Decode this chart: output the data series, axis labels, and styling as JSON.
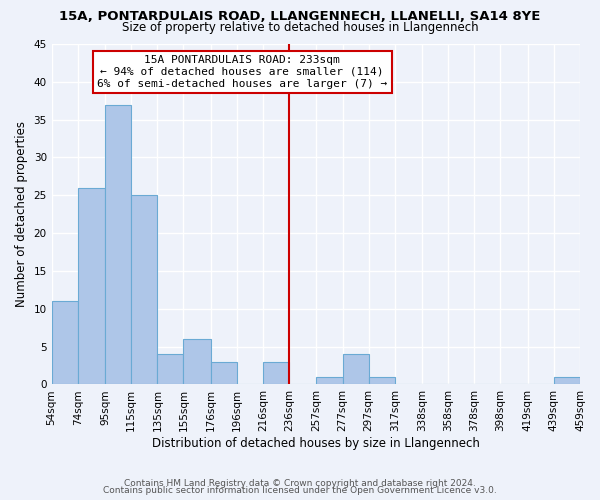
{
  "title": "15A, PONTARDULAIS ROAD, LLANGENNECH, LLANELLI, SA14 8YE",
  "subtitle": "Size of property relative to detached houses in Llangennech",
  "xlabel": "Distribution of detached houses by size in Llangennech",
  "ylabel": "Number of detached properties",
  "footer_line1": "Contains HM Land Registry data © Crown copyright and database right 2024.",
  "footer_line2": "Contains public sector information licensed under the Open Government Licence v3.0.",
  "bins": [
    54,
    74,
    95,
    115,
    135,
    155,
    176,
    196,
    216,
    236,
    257,
    277,
    297,
    317,
    338,
    358,
    378,
    398,
    419,
    439,
    459
  ],
  "counts": [
    11,
    26,
    37,
    25,
    4,
    6,
    3,
    0,
    3,
    0,
    1,
    4,
    1,
    0,
    0,
    0,
    0,
    0,
    0,
    1
  ],
  "tick_labels": [
    "54sqm",
    "74sqm",
    "95sqm",
    "115sqm",
    "135sqm",
    "155sqm",
    "176sqm",
    "196sqm",
    "216sqm",
    "236sqm",
    "257sqm",
    "277sqm",
    "297sqm",
    "317sqm",
    "338sqm",
    "358sqm",
    "378sqm",
    "398sqm",
    "419sqm",
    "439sqm",
    "459sqm"
  ],
  "bar_color": "#aec6e8",
  "bar_edge_color": "#6aaad4",
  "vline_x": 236,
  "vline_color": "#cc0000",
  "ylim": [
    0,
    45
  ],
  "yticks": [
    0,
    5,
    10,
    15,
    20,
    25,
    30,
    35,
    40,
    45
  ],
  "annotation_box_title": "15A PONTARDULAIS ROAD: 233sqm",
  "annotation_line1": "← 94% of detached houses are smaller (114)",
  "annotation_line2": "6% of semi-detached houses are larger (7) →",
  "annotation_box_color": "#ffffff",
  "annotation_box_edge": "#cc0000",
  "bg_color": "#eef2fa",
  "grid_color": "#ffffff",
  "title_fontsize": 9.5,
  "subtitle_fontsize": 8.5,
  "xlabel_fontsize": 8.5,
  "ylabel_fontsize": 8.5,
  "tick_fontsize": 7.5,
  "annotation_fontsize": 8.0,
  "footer_fontsize": 6.5
}
